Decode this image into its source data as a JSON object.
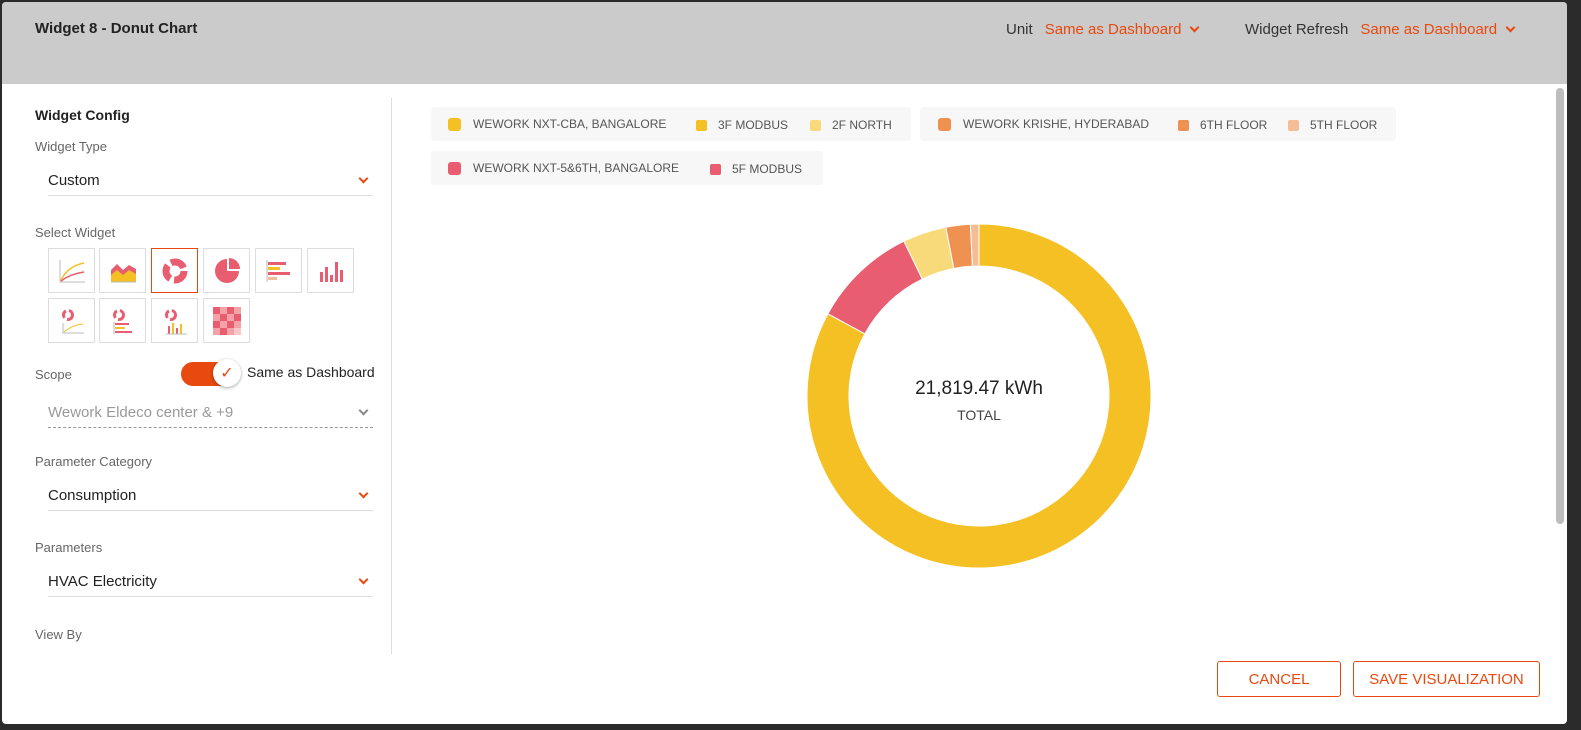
{
  "header": {
    "title": "Widget 8 - Donut Chart",
    "unit_label": "Unit",
    "unit_value": "Same as Dashboard",
    "refresh_label": "Widget Refresh",
    "refresh_value": "Same as Dashboard"
  },
  "config": {
    "section_title": "Widget Config",
    "widget_type_label": "Widget Type",
    "widget_type_value": "Custom",
    "select_widget_label": "Select Widget",
    "widget_options": [
      {
        "name": "line-chart-icon",
        "selected": false
      },
      {
        "name": "area-chart-icon",
        "selected": false
      },
      {
        "name": "donut-chart-icon",
        "selected": true
      },
      {
        "name": "pie-chart-icon",
        "selected": false
      },
      {
        "name": "horizontal-bar-icon",
        "selected": false
      },
      {
        "name": "vertical-bar-icon",
        "selected": false
      },
      {
        "name": "donut-line-icon",
        "selected": false
      },
      {
        "name": "donut-hbar-icon",
        "selected": false
      },
      {
        "name": "donut-vbar-icon",
        "selected": false
      },
      {
        "name": "heatmap-icon",
        "selected": false
      }
    ],
    "scope_label": "Scope",
    "scope_toggle_label": "Same as Dashboard",
    "scope_toggle_on": true,
    "scope_value": "Wework Eldeco center & +9",
    "param_category_label": "Parameter Category",
    "param_category_value": "Consumption",
    "parameters_label": "Parameters",
    "parameters_value": "HVAC Electricity",
    "view_by_label": "View By"
  },
  "legend": {
    "groups": [
      {
        "name": "WEWORK NXT-CBA, BANGALORE",
        "color": "#f5c024",
        "items": [
          {
            "name": "3F MODBUS",
            "color": "#f5c024"
          },
          {
            "name": "2F NORTH",
            "color": "#f8da7a"
          }
        ]
      },
      {
        "name": "WEWORK KRISHE, HYDERABAD",
        "color": "#ef9150",
        "items": [
          {
            "name": "6TH FLOOR",
            "color": "#ef9150"
          },
          {
            "name": "5TH FLOOR",
            "color": "#f3bd96"
          }
        ]
      },
      {
        "name": "WEWORK NXT-5&6TH, BANGALORE",
        "color": "#e85d6f",
        "items": [
          {
            "name": "5F MODBUS",
            "color": "#e85d6f"
          }
        ]
      }
    ]
  },
  "chart_data": {
    "type": "pie",
    "donut": true,
    "center_value": "21,819.47 kWh",
    "center_label": "TOTAL",
    "slices": [
      {
        "name": "3F MODBUS",
        "value": 83.1,
        "color": "#f5c024"
      },
      {
        "name": "5F MODBUS",
        "value": 9.9,
        "color": "#e85d6f"
      },
      {
        "name": "2F NORTH",
        "value": 4.1,
        "color": "#f8da7a"
      },
      {
        "name": "6TH FLOOR",
        "value": 2.3,
        "color": "#ef9150"
      },
      {
        "name": "5TH FLOOR",
        "value": 0.8,
        "color": "#f3bd96"
      }
    ],
    "start_from": "3F MODBUS",
    "direction": "clockwise"
  },
  "actions": {
    "cancel_label": "CANCEL",
    "save_label": "SAVE VISUALIZATION"
  }
}
